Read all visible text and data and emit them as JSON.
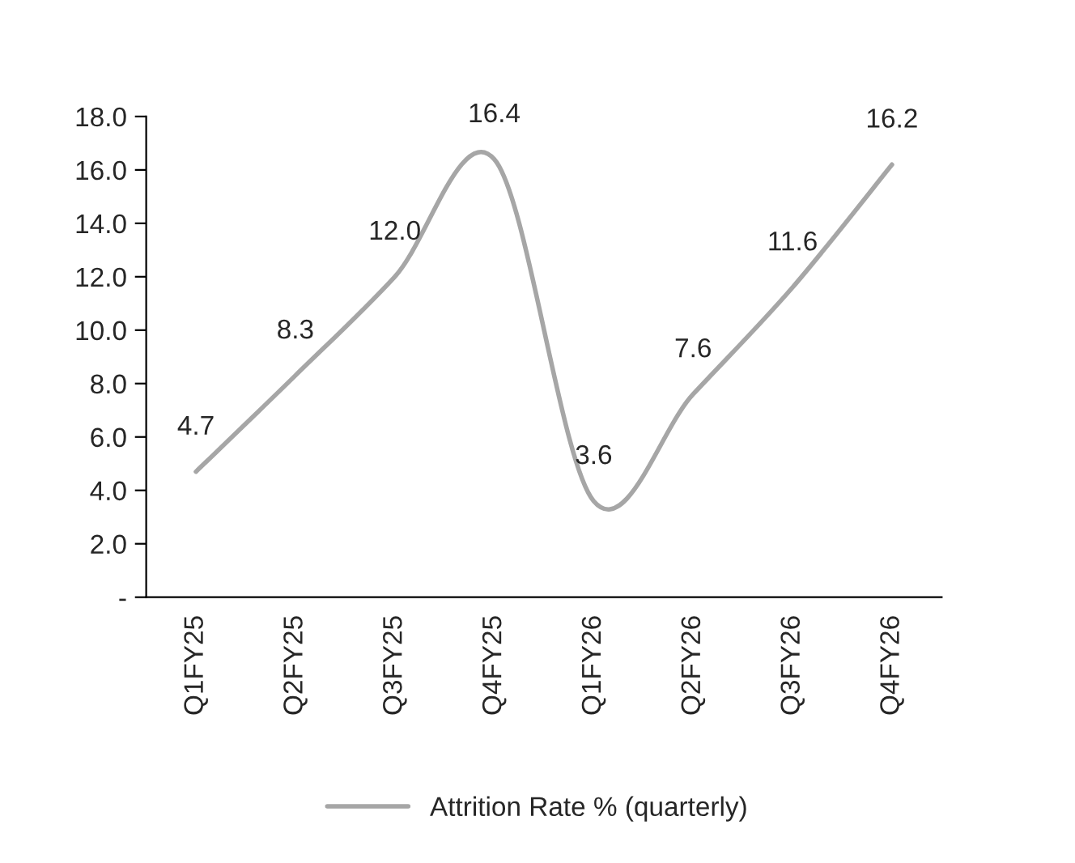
{
  "chart_data": {
    "type": "line",
    "categories": [
      "Q1FY25",
      "Q2FY25",
      "Q3FY25",
      "Q4FY25",
      "Q1FY26",
      "Q2FY26",
      "Q3FY26",
      "Q4FY26"
    ],
    "series": [
      {
        "name": "Attrition Rate % (quarterly)",
        "color": "#a6a6a6",
        "values": [
          4.7,
          8.3,
          12.0,
          16.4,
          3.6,
          7.6,
          11.6,
          16.2
        ]
      }
    ],
    "ylim": [
      0,
      18
    ],
    "yticks": [
      {
        "value": 0,
        "label": "-"
      },
      {
        "value": 2,
        "label": "2.0"
      },
      {
        "value": 4,
        "label": "4.0"
      },
      {
        "value": 6,
        "label": "6.0"
      },
      {
        "value": 8,
        "label": "8.0"
      },
      {
        "value": 10,
        "label": "10.0"
      },
      {
        "value": 12,
        "label": "12.0"
      },
      {
        "value": 14,
        "label": "14.0"
      },
      {
        "value": 16,
        "label": "16.0"
      },
      {
        "value": 18,
        "label": "18.0"
      }
    ],
    "value_labels": [
      "4.7",
      "8.3",
      "12.0",
      "16.4",
      "3.6",
      "7.6",
      "11.6",
      "16.2"
    ],
    "grid": false,
    "legend": "bottom",
    "marker": "none",
    "line_style": "solid"
  }
}
